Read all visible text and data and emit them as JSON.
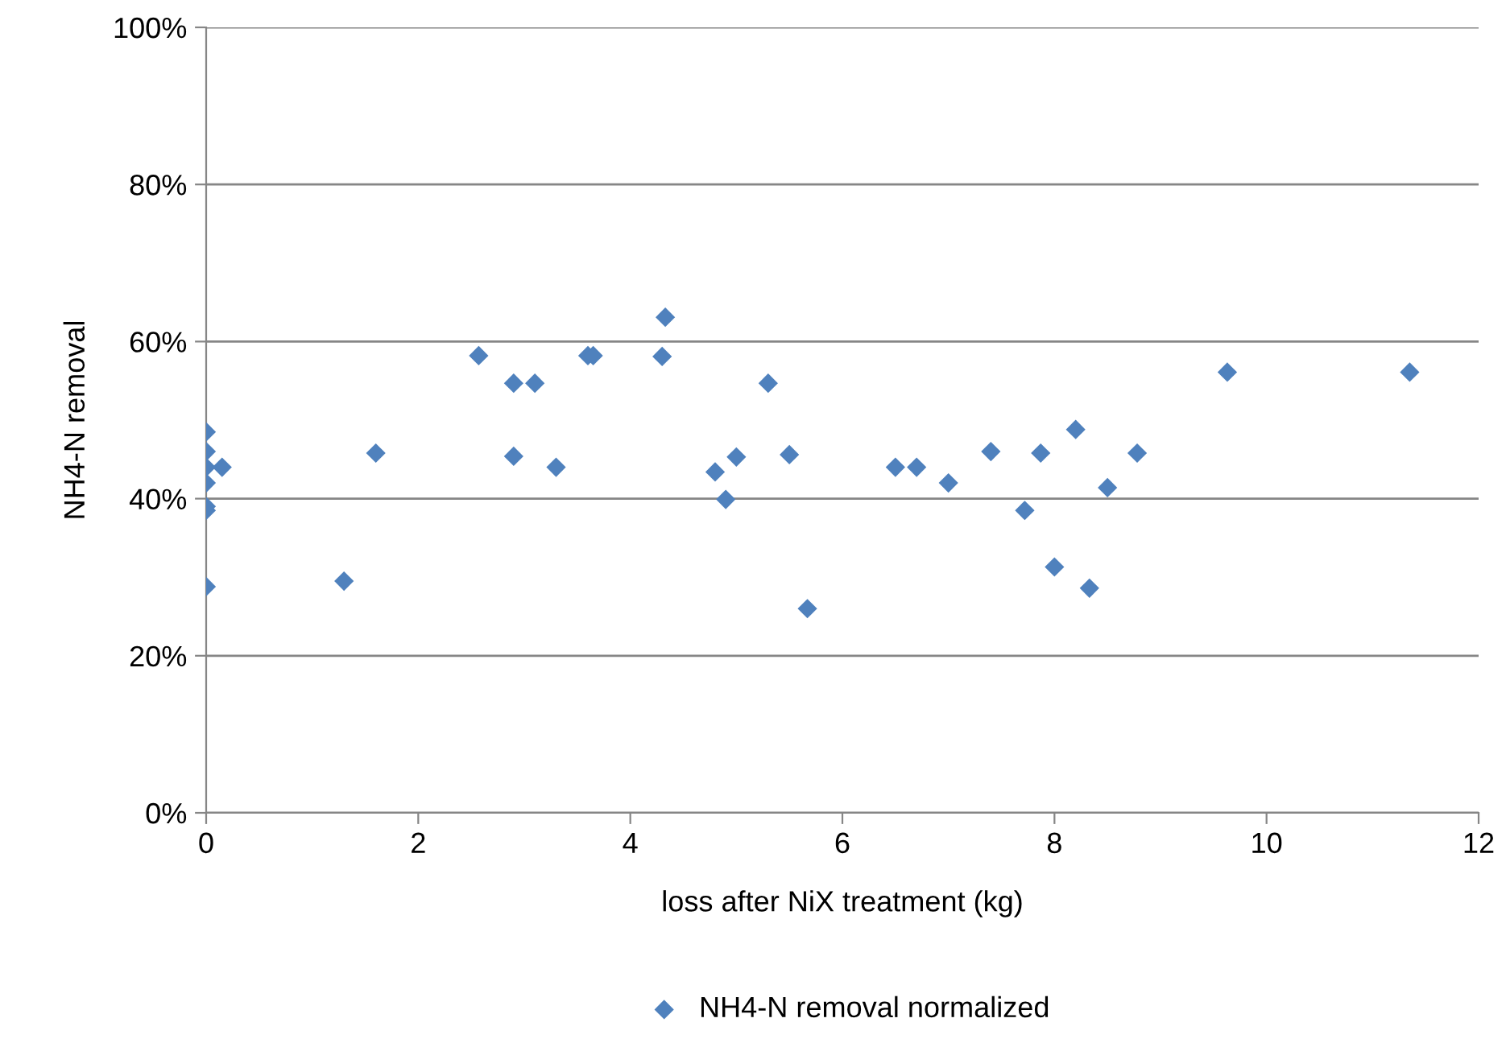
{
  "chart_data": {
    "type": "scatter",
    "xlabel": "loss after NiX treatment (kg)",
    "ylabel": "NH4-N removal",
    "x": [
      0,
      0,
      0,
      0,
      0,
      0,
      0,
      0.15,
      1.3,
      1.6,
      2.57,
      2.9,
      2.9,
      3.1,
      3.3,
      3.6,
      3.65,
      4.3,
      4.33,
      4.8,
      4.9,
      5.0,
      5.3,
      5.5,
      5.67,
      6.5,
      6.7,
      7.0,
      7.4,
      7.72,
      7.87,
      8.0,
      8.2,
      8.33,
      8.5,
      8.78,
      9.63,
      11.35
    ],
    "series": [
      {
        "name": "NH4-N removal normalized",
        "color": "#4f81bd",
        "values": [
          48.5,
          46,
          44,
          42,
          39,
          38.5,
          28.8,
          44,
          29.5,
          45.8,
          58.2,
          54.7,
          45.4,
          54.7,
          44,
          58.2,
          58.2,
          58.1,
          63.1,
          43.4,
          39.9,
          45.3,
          54.7,
          45.6,
          26,
          44,
          44,
          42,
          46,
          38.5,
          45.8,
          31.3,
          48.8,
          28.6,
          41.4,
          45.8,
          56.1,
          56.1
        ]
      }
    ],
    "xlim": [
      0,
      12
    ],
    "xticks": [
      0,
      2,
      4,
      6,
      8,
      10,
      12
    ],
    "ylim": [
      0,
      100
    ],
    "yticks": [
      {
        "value": 0,
        "label": "0%"
      },
      {
        "value": 20,
        "label": "20%"
      },
      {
        "value": 40,
        "label": "40%"
      },
      {
        "value": 60,
        "label": "60%"
      },
      {
        "value": 80,
        "label": "80%"
      },
      {
        "value": 100,
        "label": "100%"
      }
    ],
    "grid": "y",
    "legend": "bottom",
    "marker": "diamond"
  }
}
